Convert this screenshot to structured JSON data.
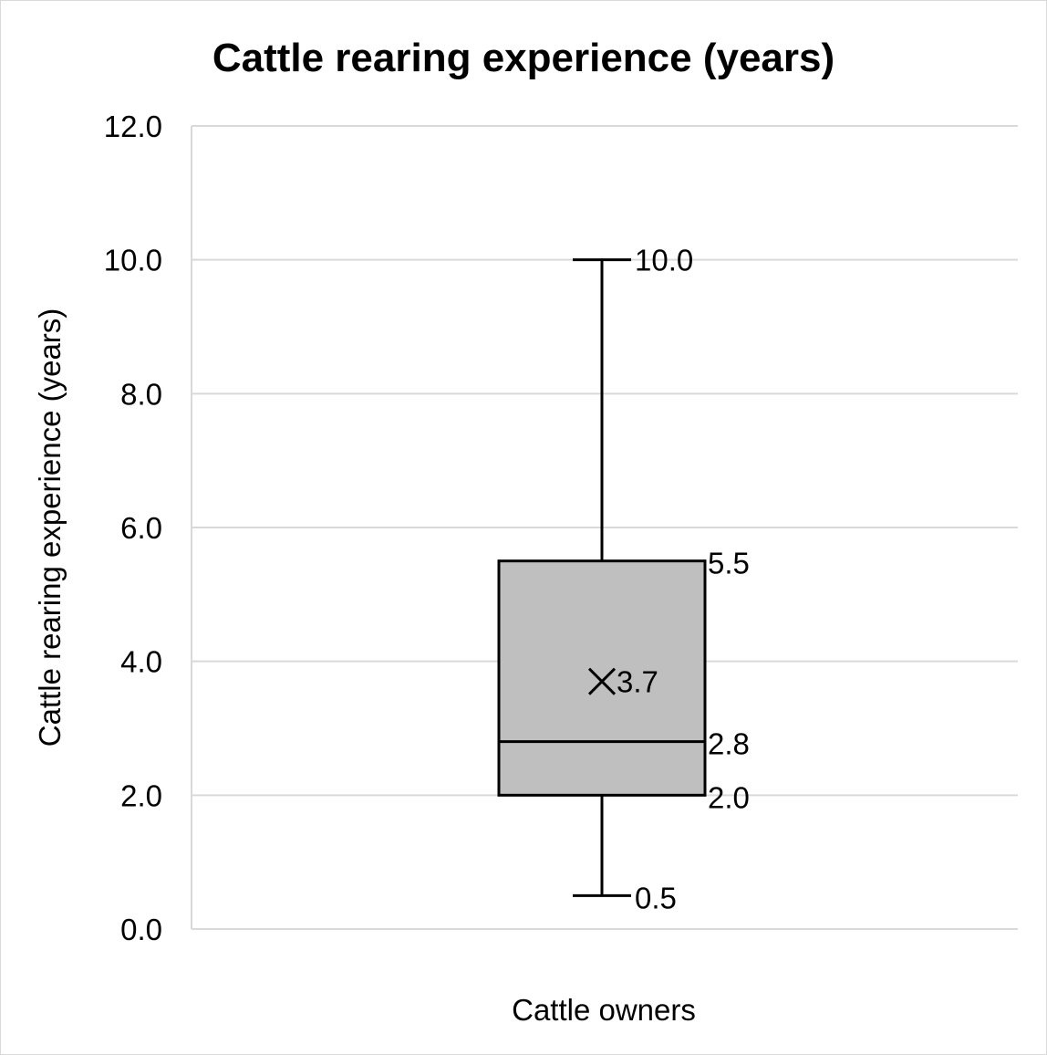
{
  "chart_data": {
    "type": "boxplot",
    "title": "Cattle rearing experience (years)",
    "xlabel": "Cattle owners",
    "ylabel": "Cattle rearing experience (years)",
    "ylim": [
      0,
      12
    ],
    "y_ticks": [
      "0.0",
      "2.0",
      "4.0",
      "6.0",
      "8.0",
      "10.0",
      "12.0"
    ],
    "grid": true,
    "legend": "none",
    "series": [
      {
        "category": "Cattle owners",
        "min": 0.5,
        "q1": 2.0,
        "median": 2.8,
        "q3": 5.5,
        "max": 10.0,
        "mean": 3.7,
        "labels": {
          "min": "0.5",
          "q1": "2.0",
          "median": "2.8",
          "q3": "5.5",
          "max": "10.0",
          "mean": "3.7"
        }
      }
    ],
    "colors": {
      "box_fill": "#bfbfbf",
      "stroke": "#000000",
      "grid": "#d9d9d9"
    }
  }
}
